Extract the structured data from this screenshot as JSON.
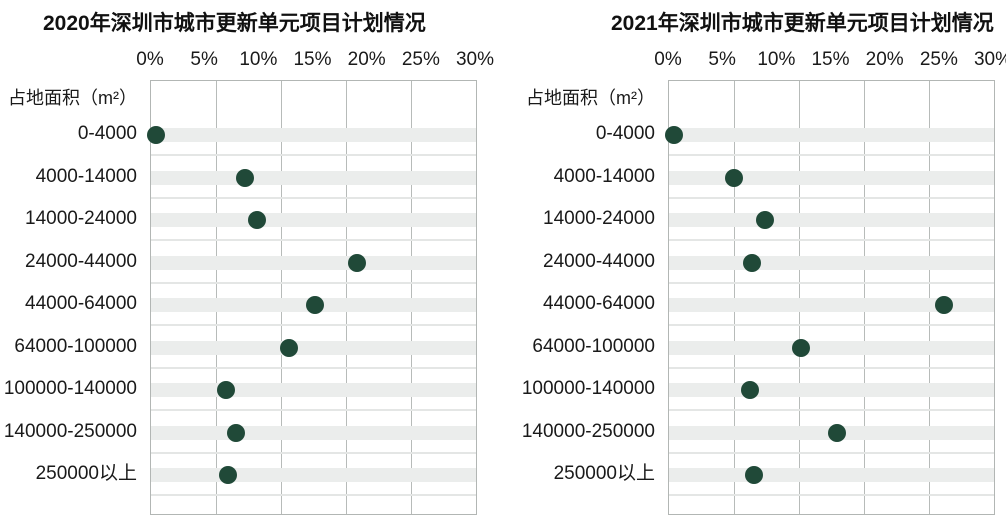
{
  "style": {
    "background": "#ffffff",
    "title_color": "#111111",
    "text_color": "#1a1a1a",
    "dot_color": "#204938",
    "band_color": "#ebedec",
    "separator_color": "#e4e6e5",
    "grid_color": "#b7bbb9",
    "border_color": "#b2b6b4"
  },
  "chart_data": [
    {
      "type": "scatter",
      "title": "2020年深圳市城市更新单元项目计划情况",
      "y_axis_title": "占地面积（m²）",
      "x_ticks": [
        "0%",
        "5%",
        "10%",
        "15%",
        "20%",
        "25%",
        "30%"
      ],
      "xlim": [
        0,
        30
      ],
      "x_unit": "%",
      "grid": true,
      "legend_position": "none",
      "categories": [
        "0-4000",
        "4000-14000",
        "14000-24000",
        "24000-44000",
        "44000-64000",
        "64000-100000",
        "100000-140000",
        "140000-250000",
        "250000以上"
      ],
      "values": [
        0.5,
        8.7,
        9.8,
        19.0,
        15.1,
        12.7,
        6.9,
        7.8,
        7.1
      ]
    },
    {
      "type": "scatter",
      "title": "2021年深圳市城市更新单元项目计划情况",
      "y_axis_title": "占地面积（m²）",
      "x_ticks": [
        "0%",
        "5%",
        "10%",
        "15%",
        "20%",
        "25%",
        "30%"
      ],
      "xlim": [
        0,
        30
      ],
      "x_unit": "%",
      "grid": true,
      "legend_position": "none",
      "categories": [
        "0-4000",
        "4000-14000",
        "14000-24000",
        "24000-44000",
        "44000-64000",
        "64000-100000",
        "100000-140000",
        "140000-250000",
        "250000以上"
      ],
      "values": [
        0.5,
        6.0,
        8.9,
        7.7,
        25.4,
        12.2,
        7.5,
        15.5,
        7.8
      ]
    }
  ]
}
